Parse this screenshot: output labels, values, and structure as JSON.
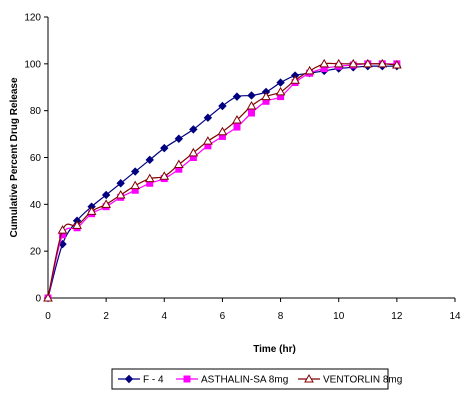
{
  "chart_data": {
    "type": "line",
    "xlabel": "Time (hr)",
    "ylabel": "Cumulative Percent Drug Release",
    "xlim": [
      0,
      14
    ],
    "ylim": [
      0,
      120
    ],
    "xticks": [
      "0",
      "2",
      "4",
      "6",
      "8",
      "10",
      "12",
      "14"
    ],
    "yticks": [
      "0",
      "20",
      "40",
      "60",
      "80",
      "100",
      "120"
    ],
    "grid": false,
    "legend": "bottom",
    "series": [
      {
        "name": "F - 4",
        "color": "#000080",
        "marker": "diamond",
        "x": [
          0,
          0.5,
          1,
          1.5,
          2,
          2.5,
          3,
          3.5,
          4,
          4.5,
          5,
          5.5,
          6,
          6.5,
          7,
          7.5,
          8,
          8.5,
          9,
          9.5,
          10,
          10.5,
          11,
          11.5,
          12
        ],
        "y": [
          0,
          23,
          33,
          39,
          44,
          49,
          54,
          59,
          64,
          68,
          72,
          77,
          82,
          86,
          86.5,
          88,
          92,
          95,
          96,
          97,
          98,
          98.5,
          99,
          99,
          99
        ]
      },
      {
        "name": "ASTHALIN-SA 8mg",
        "color": "#FF00FF",
        "marker": "square",
        "x": [
          0,
          0.5,
          1,
          1.5,
          2,
          2.5,
          3,
          3.5,
          4,
          4.5,
          5,
          5.5,
          6,
          6.5,
          7,
          7.5,
          8,
          8.5,
          9,
          9.5,
          10,
          10.5,
          11,
          11.5,
          12
        ],
        "y": [
          0,
          27,
          30,
          36,
          39,
          43,
          46,
          49,
          51,
          55,
          60,
          65,
          69,
          73,
          79,
          84,
          86,
          92,
          96,
          98,
          99,
          99.5,
          100,
          100,
          100
        ]
      },
      {
        "name": "VENTORLIN 8mg",
        "color": "#800000",
        "marker": "triangle",
        "x": [
          0,
          0.5,
          1,
          1.5,
          2,
          2.5,
          3,
          3.5,
          4,
          4.5,
          5,
          5.5,
          6,
          6.5,
          7,
          7.5,
          8,
          8.5,
          9,
          9.5,
          10,
          10.5,
          11,
          11.5,
          12
        ],
        "y": [
          0,
          29,
          31,
          37,
          40,
          44,
          48,
          51,
          52,
          57,
          62,
          67,
          71,
          76,
          82,
          86,
          88,
          93,
          97,
          100,
          100,
          100,
          100,
          100,
          99.5
        ]
      }
    ]
  }
}
